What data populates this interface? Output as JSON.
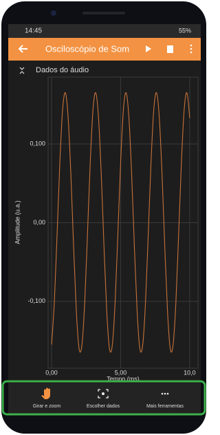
{
  "status_bar": {
    "time": "14:45",
    "battery": "55%"
  },
  "app_bar": {
    "title": "Osciloscópio de Som"
  },
  "chart_data": {
    "type": "line",
    "title": "Dados do áudio",
    "x_label": "Tempo (ms)",
    "y_label": "Amplitude (u.a.)",
    "x": [
      0,
      0.2,
      0.4,
      0.6,
      0.8,
      1,
      1.2,
      1.4,
      1.6,
      1.8,
      2,
      2.2,
      2.4,
      2.6,
      2.8,
      3,
      3.2,
      3.4,
      3.6,
      3.8,
      4,
      4.2,
      4.4,
      4.6,
      4.8,
      5,
      5.2,
      5.4,
      5.6,
      5.8,
      6,
      6.2,
      6.4,
      6.6,
      6.8,
      7,
      7.2,
      7.4,
      7.6,
      7.8,
      8,
      8.2,
      8.4,
      8.6,
      8.8,
      9,
      9.2,
      9.4,
      9.6,
      9.8,
      10
    ],
    "series": [
      {
        "color": "#c8743a",
        "values": [
          -0.155,
          -0.101,
          -0.014,
          0.077,
          0.144,
          0.165,
          0.133,
          0.06,
          -0.033,
          -0.115,
          -0.161,
          -0.155,
          -0.101,
          -0.014,
          0.077,
          0.144,
          0.165,
          0.133,
          0.06,
          -0.033,
          -0.115,
          -0.161,
          -0.155,
          -0.101,
          -0.014,
          0.077,
          0.144,
          0.165,
          0.133,
          0.06,
          -0.033,
          -0.115,
          -0.161,
          -0.155,
          -0.101,
          -0.014,
          0.077,
          0.144,
          0.165,
          0.133,
          0.06,
          -0.033,
          -0.115,
          -0.161,
          -0.155,
          -0.101,
          -0.014,
          0.077,
          0.144,
          0.165,
          0.133
        ]
      }
    ],
    "xlim": [
      -0.25,
      10.6
    ],
    "ylim": [
      -0.185,
      0.185
    ],
    "xticks": [
      {
        "value": 0,
        "label": "0,00"
      },
      {
        "value": 5,
        "label": "5,00"
      },
      {
        "value": 10,
        "label": "10,0"
      }
    ],
    "yticks": [
      {
        "value": 0.1,
        "label": "0,100"
      },
      {
        "value": 0,
        "label": "0,00"
      },
      {
        "value": -0.1,
        "label": "-0,100"
      }
    ],
    "grid": true
  },
  "bottom_bar": {
    "items": [
      "Girar e zoom",
      "Escolher dados",
      "Mais ferramentas"
    ]
  }
}
